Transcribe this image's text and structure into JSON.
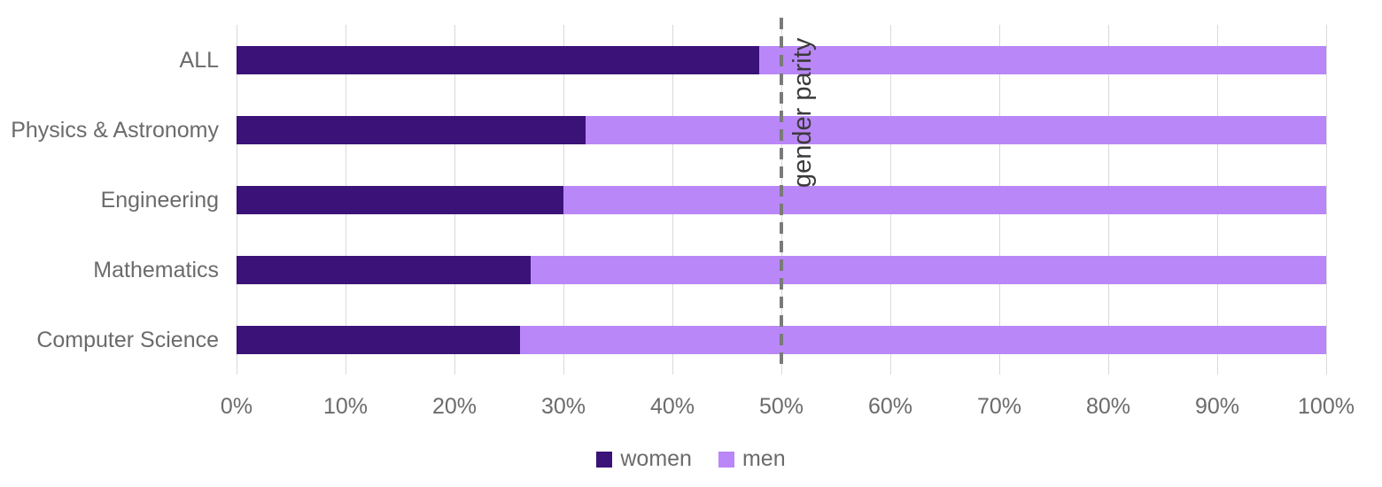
{
  "chart_data": {
    "type": "bar",
    "orientation": "horizontal",
    "stacked": true,
    "stacked_total": 100,
    "categories": [
      "ALL",
      "Physics & Astronomy",
      "Engineering",
      "Mathematics",
      "Computer Science"
    ],
    "series": [
      {
        "name": "women",
        "color": "#3b1278",
        "values": [
          48,
          32,
          30,
          27,
          26
        ]
      },
      {
        "name": "men",
        "color": "#b987f7",
        "values": [
          52,
          68,
          70,
          73,
          74
        ]
      }
    ],
    "x_axis": {
      "min": 0,
      "max": 100,
      "ticks": [
        "0%",
        "10%",
        "20%",
        "30%",
        "40%",
        "50%",
        "60%",
        "70%",
        "80%",
        "90%",
        "100%"
      ]
    },
    "reference_line": {
      "value": 50,
      "label": "gender parity",
      "style": "dashed",
      "color": "#7a7a7a"
    },
    "legend": {
      "position": "bottom",
      "entries": [
        "women",
        "men"
      ]
    },
    "grid": true,
    "title": "",
    "xlabel": "",
    "ylabel": ""
  },
  "colors": {
    "women": "#3b1278",
    "men": "#b987f7",
    "gridline": "#d9d9d9",
    "axis_text": "#6b6b6b",
    "reference_line": "#7a7a7a",
    "reference_label": "#3a3a3a",
    "background": "#ffffff"
  }
}
